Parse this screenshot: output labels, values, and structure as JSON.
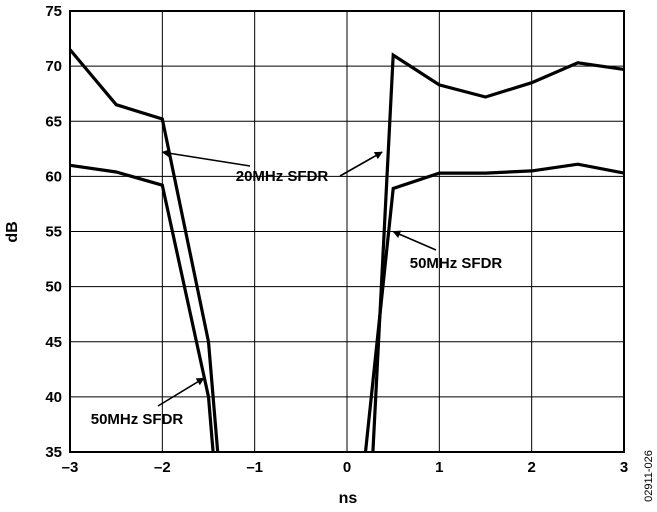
{
  "chart_data": {
    "type": "line",
    "title": "",
    "xlabel": "ns",
    "ylabel": "dB",
    "xlim": [
      -3,
      3
    ],
    "ylim": [
      35,
      75
    ],
    "xticks": [
      "–3",
      "–2",
      "–1",
      "0",
      "1",
      "2",
      "3"
    ],
    "yticks": [
      "35",
      "40",
      "45",
      "50",
      "55",
      "60",
      "65",
      "70",
      "75"
    ],
    "grid": true,
    "legend": "none",
    "series": [
      {
        "name": "20MHz SFDR",
        "segments": [
          [
            [
              -3,
              71.5
            ],
            [
              -2.5,
              66.5
            ],
            [
              -2,
              65.2
            ],
            [
              -1.5,
              45
            ],
            [
              -1.4,
              35
            ]
          ],
          [
            [
              0.28,
              35
            ],
            [
              0.5,
              71.0
            ],
            [
              1,
              68.3
            ],
            [
              1.5,
              67.2
            ],
            [
              2,
              68.5
            ],
            [
              2.5,
              70.3
            ],
            [
              3,
              69.7
            ]
          ]
        ]
      },
      {
        "name": "50MHz SFDR",
        "segments": [
          [
            [
              -3,
              61.0
            ],
            [
              -2.5,
              60.4
            ],
            [
              -2,
              59.2
            ],
            [
              -1.5,
              40
            ],
            [
              -1.45,
              35
            ]
          ],
          [
            [
              0.2,
              35
            ],
            [
              0.5,
              58.9
            ],
            [
              1,
              60.3
            ],
            [
              1.5,
              60.3
            ],
            [
              2,
              60.5
            ],
            [
              2.5,
              61.1
            ],
            [
              3,
              60.3
            ]
          ]
        ]
      }
    ],
    "annotations": [
      {
        "text": "20MHz SFDR",
        "arrow_to": [
          [
            -2,
            62.2
          ],
          [
            0.38,
            62.2
          ]
        ]
      },
      {
        "text": "50MHz SFDR",
        "arrow_to": [
          [
            0.5,
            55.0
          ]
        ]
      },
      {
        "text": "50MHz SFDR",
        "arrow_to": [
          [
            -1.55,
            41.7
          ]
        ]
      }
    ],
    "figure_id": "02911-026"
  }
}
